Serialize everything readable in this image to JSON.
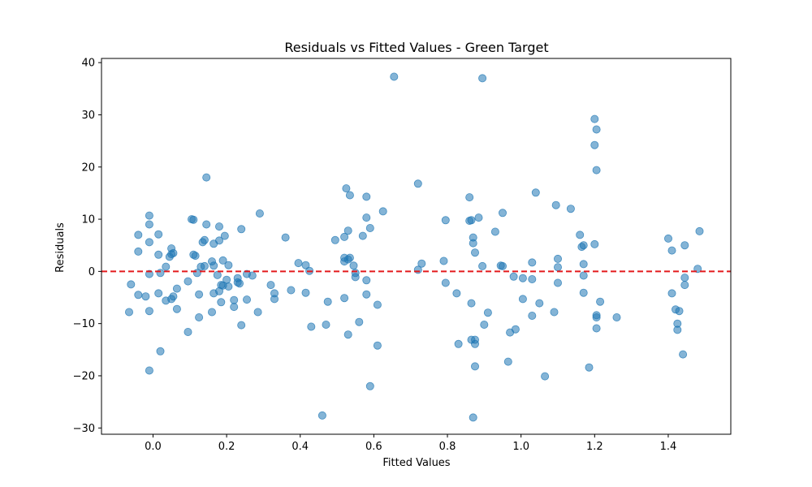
{
  "chart_data": {
    "type": "scatter",
    "title": "Residuals vs Fitted Values - Green Target",
    "xlabel": "Fitted Values",
    "ylabel": "Residuals",
    "xlim": [
      -0.14,
      1.57
    ],
    "ylim": [
      -31.2,
      40.8
    ],
    "xticks": [
      0.0,
      0.2,
      0.4,
      0.6,
      0.8,
      1.0,
      1.2,
      1.4
    ],
    "xtick_labels": [
      "0.0",
      "0.2",
      "0.4",
      "0.6",
      "0.8",
      "1.0",
      "1.2",
      "1.4"
    ],
    "yticks": [
      -30,
      -20,
      -10,
      0,
      10,
      20,
      30,
      40
    ],
    "ytick_labels": [
      "−30",
      "−20",
      "−10",
      "0",
      "10",
      "20",
      "30",
      "40"
    ],
    "reference_line": {
      "y": 0,
      "style": "dashed",
      "color": "#e41a1c"
    },
    "point_color": "#1f77b4",
    "point_alpha": 0.55,
    "grid": false,
    "legend": "none",
    "points": [
      [
        -0.06,
        -2.5
      ],
      [
        -0.065,
        -7.8
      ],
      [
        -0.04,
        7.0
      ],
      [
        -0.04,
        3.8
      ],
      [
        -0.04,
        -4.5
      ],
      [
        -0.02,
        -4.8
      ],
      [
        -0.01,
        10.7
      ],
      [
        -0.01,
        9.0
      ],
      [
        -0.01,
        5.6
      ],
      [
        -0.01,
        -0.5
      ],
      [
        -0.01,
        -7.6
      ],
      [
        -0.01,
        -19.0
      ],
      [
        0.015,
        7.1
      ],
      [
        0.015,
        3.2
      ],
      [
        0.015,
        -4.2
      ],
      [
        0.02,
        -0.3
      ],
      [
        0.02,
        -15.3
      ],
      [
        0.035,
        0.9
      ],
      [
        0.035,
        -5.6
      ],
      [
        0.045,
        2.8
      ],
      [
        0.05,
        3.3
      ],
      [
        0.05,
        4.4
      ],
      [
        0.055,
        3.5
      ],
      [
        0.05,
        -5.3
      ],
      [
        0.055,
        -4.8
      ],
      [
        0.065,
        -3.3
      ],
      [
        0.065,
        -7.2
      ],
      [
        0.095,
        -1.9
      ],
      [
        0.095,
        -11.6
      ],
      [
        0.105,
        10.0
      ],
      [
        0.11,
        9.9
      ],
      [
        0.11,
        3.2
      ],
      [
        0.115,
        3.0
      ],
      [
        0.12,
        -0.3
      ],
      [
        0.125,
        -4.4
      ],
      [
        0.125,
        -8.8
      ],
      [
        0.13,
        0.9
      ],
      [
        0.135,
        5.6
      ],
      [
        0.14,
        6.0
      ],
      [
        0.14,
        1.0
      ],
      [
        0.145,
        9.0
      ],
      [
        0.145,
        18.0
      ],
      [
        0.16,
        1.9
      ],
      [
        0.16,
        -7.8
      ],
      [
        0.165,
        5.3
      ],
      [
        0.165,
        -4.2
      ],
      [
        0.165,
        1.1
      ],
      [
        0.175,
        -0.7
      ],
      [
        0.18,
        5.9
      ],
      [
        0.18,
        8.6
      ],
      [
        0.18,
        -3.8
      ],
      [
        0.185,
        -5.9
      ],
      [
        0.185,
        -2.6
      ],
      [
        0.19,
        2.1
      ],
      [
        0.19,
        -2.7
      ],
      [
        0.195,
        6.8
      ],
      [
        0.2,
        -1.6
      ],
      [
        0.205,
        -2.9
      ],
      [
        0.205,
        1.2
      ],
      [
        0.22,
        -5.5
      ],
      [
        0.22,
        -6.8
      ],
      [
        0.23,
        -2.1
      ],
      [
        0.23,
        -1.3
      ],
      [
        0.235,
        -2.3
      ],
      [
        0.24,
        8.1
      ],
      [
        0.24,
        -10.3
      ],
      [
        0.255,
        -0.5
      ],
      [
        0.255,
        -5.4
      ],
      [
        0.27,
        -0.8
      ],
      [
        0.285,
        -7.8
      ],
      [
        0.29,
        11.1
      ],
      [
        0.32,
        -2.6
      ],
      [
        0.33,
        -5.3
      ],
      [
        0.33,
        -4.2
      ],
      [
        0.36,
        6.5
      ],
      [
        0.375,
        -3.6
      ],
      [
        0.395,
        1.6
      ],
      [
        0.415,
        1.2
      ],
      [
        0.415,
        -4.1
      ],
      [
        0.425,
        0.1
      ],
      [
        0.43,
        -10.6
      ],
      [
        0.46,
        -27.6
      ],
      [
        0.47,
        -10.2
      ],
      [
        0.475,
        -5.8
      ],
      [
        0.495,
        6.0
      ],
      [
        0.52,
        2.6
      ],
      [
        0.52,
        1.9
      ],
      [
        0.52,
        6.6
      ],
      [
        0.52,
        -5.1
      ],
      [
        0.525,
        15.9
      ],
      [
        0.53,
        7.8
      ],
      [
        0.53,
        2.3
      ],
      [
        0.53,
        -12.1
      ],
      [
        0.535,
        14.6
      ],
      [
        0.535,
        2.6
      ],
      [
        0.545,
        1.1
      ],
      [
        0.55,
        -0.3
      ],
      [
        0.55,
        -1.1
      ],
      [
        0.56,
        -9.7
      ],
      [
        0.57,
        6.8
      ],
      [
        0.58,
        14.3
      ],
      [
        0.58,
        10.3
      ],
      [
        0.58,
        -1.7
      ],
      [
        0.58,
        -4.4
      ],
      [
        0.59,
        8.3
      ],
      [
        0.59,
        -22.0
      ],
      [
        0.61,
        -6.4
      ],
      [
        0.61,
        -14.2
      ],
      [
        0.625,
        11.5
      ],
      [
        0.655,
        37.3
      ],
      [
        0.72,
        16.8
      ],
      [
        0.72,
        0.3
      ],
      [
        0.73,
        1.5
      ],
      [
        0.79,
        2.0
      ],
      [
        0.795,
        9.8
      ],
      [
        0.795,
        -2.2
      ],
      [
        0.825,
        -4.2
      ],
      [
        0.83,
        -13.9
      ],
      [
        0.86,
        14.2
      ],
      [
        0.86,
        9.7
      ],
      [
        0.865,
        9.8
      ],
      [
        0.865,
        -6.1
      ],
      [
        0.865,
        -13.1
      ],
      [
        0.87,
        6.5
      ],
      [
        0.87,
        5.4
      ],
      [
        0.87,
        -28.0
      ],
      [
        0.875,
        3.6
      ],
      [
        0.875,
        -13.9
      ],
      [
        0.875,
        -18.2
      ],
      [
        0.875,
        -13.1
      ],
      [
        0.885,
        10.3
      ],
      [
        0.895,
        37.0
      ],
      [
        0.895,
        1.0
      ],
      [
        0.9,
        -10.2
      ],
      [
        0.91,
        -7.9
      ],
      [
        0.93,
        7.6
      ],
      [
        0.945,
        1.1
      ],
      [
        0.95,
        1.0
      ],
      [
        0.95,
        11.2
      ],
      [
        0.965,
        -17.3
      ],
      [
        0.97,
        -11.7
      ],
      [
        0.98,
        -1.0
      ],
      [
        0.985,
        -11.1
      ],
      [
        1.005,
        -1.3
      ],
      [
        1.005,
        -5.3
      ],
      [
        1.03,
        1.7
      ],
      [
        1.03,
        -1.5
      ],
      [
        1.03,
        -8.5
      ],
      [
        1.04,
        15.1
      ],
      [
        1.05,
        -6.1
      ],
      [
        1.065,
        -20.1
      ],
      [
        1.09,
        -7.8
      ],
      [
        1.095,
        12.7
      ],
      [
        1.1,
        2.4
      ],
      [
        1.1,
        0.8
      ],
      [
        1.1,
        -2.2
      ],
      [
        1.135,
        12.0
      ],
      [
        1.16,
        7.0
      ],
      [
        1.165,
        4.7
      ],
      [
        1.17,
        5.0
      ],
      [
        1.17,
        1.4
      ],
      [
        1.17,
        -0.8
      ],
      [
        1.17,
        -4.1
      ],
      [
        1.185,
        -18.4
      ],
      [
        1.2,
        29.2
      ],
      [
        1.2,
        24.2
      ],
      [
        1.2,
        5.2
      ],
      [
        1.205,
        27.2
      ],
      [
        1.205,
        19.4
      ],
      [
        1.205,
        -8.4
      ],
      [
        1.205,
        -8.8
      ],
      [
        1.205,
        -10.9
      ],
      [
        1.215,
        -5.8
      ],
      [
        1.26,
        -8.8
      ],
      [
        1.4,
        6.3
      ],
      [
        1.41,
        4.0
      ],
      [
        1.41,
        -4.2
      ],
      [
        1.42,
        -7.3
      ],
      [
        1.425,
        -10.0
      ],
      [
        1.425,
        -11.2
      ],
      [
        1.43,
        -7.6
      ],
      [
        1.44,
        -15.9
      ],
      [
        1.445,
        5.0
      ],
      [
        1.445,
        -1.2
      ],
      [
        1.445,
        -2.6
      ],
      [
        1.48,
        0.5
      ],
      [
        1.485,
        7.7
      ]
    ]
  }
}
